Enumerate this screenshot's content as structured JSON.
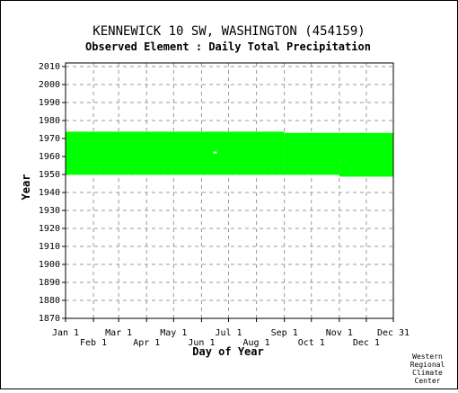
{
  "chart_data": {
    "type": "heatmap",
    "title": "KENNEWICK 10 SW, WASHINGTON   (454159)",
    "subtitle": "Observed Element : Daily Total Precipitation",
    "xlabel": "Day of Year",
    "ylabel": "Year",
    "xlim": [
      1,
      365
    ],
    "ylim": [
      1870,
      2012
    ],
    "x_ticks_upper": [
      {
        "label": "Jan 1",
        "day": 1
      },
      {
        "label": "Mar 1",
        "day": 60
      },
      {
        "label": "May 1",
        "day": 121
      },
      {
        "label": "Jul 1",
        "day": 182
      },
      {
        "label": "Sep 1",
        "day": 244
      },
      {
        "label": "Nov 1",
        "day": 305
      },
      {
        "label": "Dec 31",
        "day": 365
      }
    ],
    "x_ticks_lower": [
      {
        "label": "Feb 1",
        "day": 32
      },
      {
        "label": "Apr 1",
        "day": 91
      },
      {
        "label": "Jun 1",
        "day": 152
      },
      {
        "label": "Aug 1",
        "day": 213
      },
      {
        "label": "Oct 1",
        "day": 274
      },
      {
        "label": "Dec 1",
        "day": 335
      }
    ],
    "y_ticks": [
      "2010",
      "2000",
      "1990",
      "1980",
      "1970",
      "1960",
      "1950",
      "1940",
      "1930",
      "1920",
      "1910",
      "1900",
      "1890",
      "1880",
      "1870"
    ],
    "grid": true,
    "data_color": "#00ff00",
    "observed_blocks": [
      {
        "day_start": 1,
        "day_end": 244,
        "year_start": 1949.8,
        "year_end": 1973.8
      },
      {
        "day_start": 244,
        "day_end": 305,
        "year_start": 1949.8,
        "year_end": 1973.1
      },
      {
        "day_start": 305,
        "day_end": 365,
        "year_start": 1948.8,
        "year_end": 1973.1
      }
    ],
    "missing_cells": [
      {
        "day": 167,
        "year": 1962.2
      }
    ]
  },
  "credit": [
    "Western",
    "Regional",
    "Climate",
    "Center"
  ]
}
